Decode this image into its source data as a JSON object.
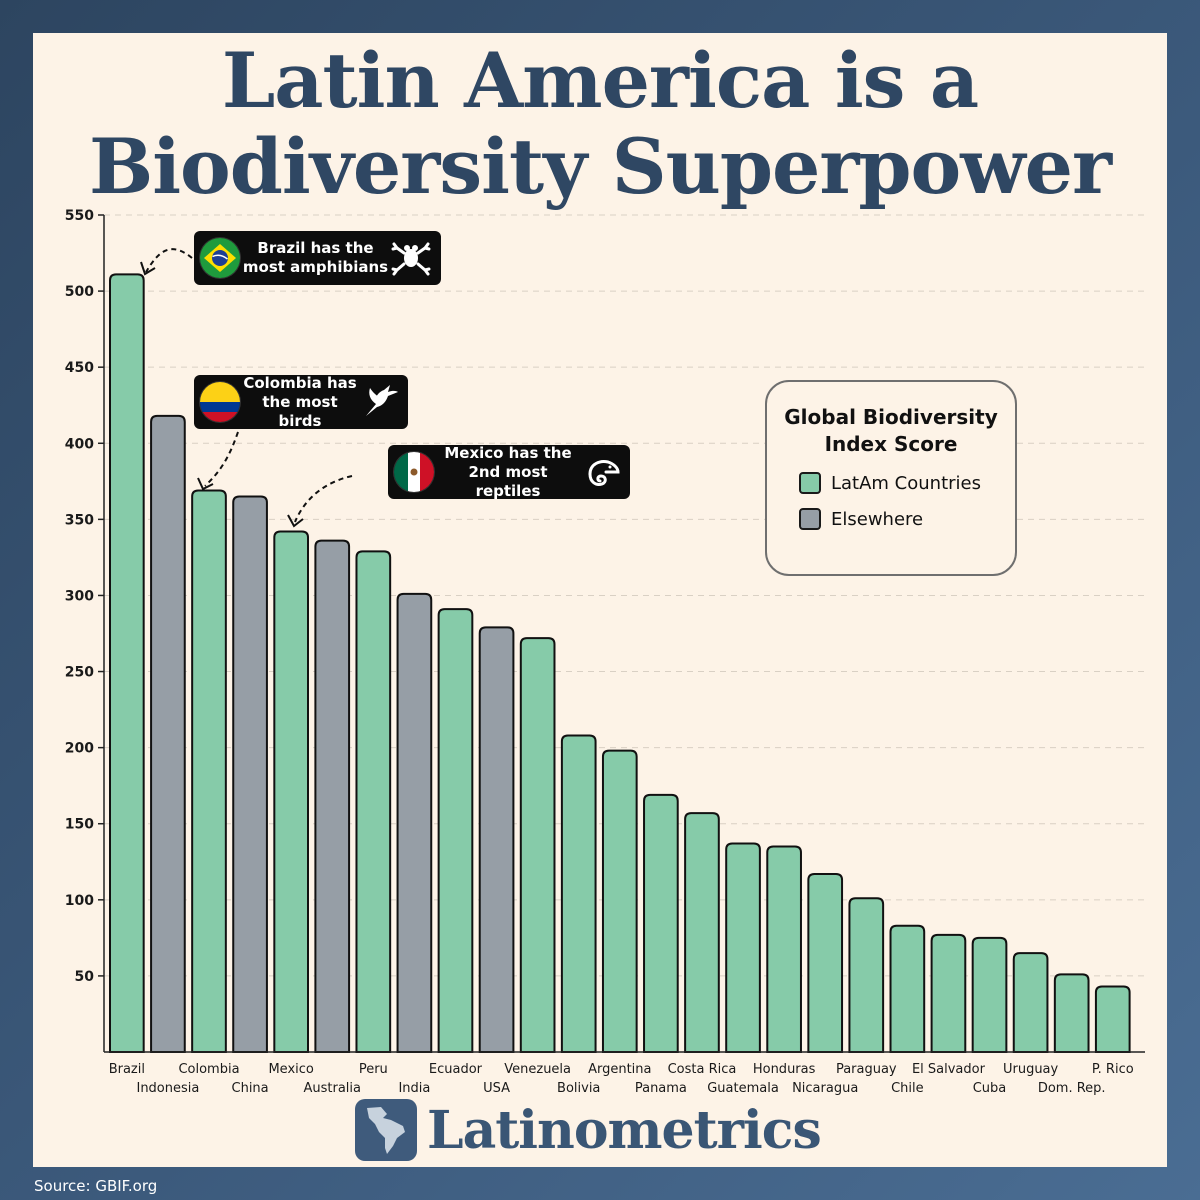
{
  "title": "Latin America is a Biodiversity Superpower",
  "source": "Source: GBIF.org",
  "brand": "Latinometrics",
  "colors": {
    "latam": "#86cba9",
    "elsewhere": "#969ea6",
    "title": "#2f4763",
    "background": "#fdf3e7"
  },
  "annotations": [
    {
      "id": "brazil",
      "text_line1": "Brazil has the",
      "text_line2": "most amphibians",
      "flag": "brazil-flag",
      "icon": "frog-icon"
    },
    {
      "id": "colombia",
      "text_line1": "Colombia has",
      "text_line2": "the most birds",
      "flag": "colombia-flag",
      "icon": "hummingbird-icon"
    },
    {
      "id": "mexico",
      "text_line1": "Mexico has the",
      "text_line2": "2nd most reptiles",
      "flag": "mexico-flag",
      "icon": "chameleon-icon"
    }
  ],
  "legend": {
    "title": "Global Biodiversity Index Score",
    "items": [
      {
        "label": "LatAm Countries",
        "color": "#86cba9"
      },
      {
        "label": "Elsewhere",
        "color": "#969ea6"
      }
    ]
  },
  "chart_data": {
    "type": "bar",
    "title": "",
    "xlabel": "",
    "ylabel": "",
    "ylim": [
      0,
      550
    ],
    "yticks": [
      50,
      100,
      150,
      200,
      250,
      300,
      350,
      400,
      450,
      500,
      550
    ],
    "grid": true,
    "categories": [
      "Brazil",
      "Indonesia",
      "Colombia",
      "China",
      "Mexico",
      "Australia",
      "Peru",
      "India",
      "Ecuador",
      "USA",
      "Venezuela",
      "Bolivia",
      "Argentina",
      "Panama",
      "Costa Rica",
      "Guatemala",
      "Honduras",
      "Nicaragua",
      "Paraguay",
      "Chile",
      "El Salvador",
      "Cuba",
      "Uruguay",
      "Dom. Rep.",
      "P. Rico"
    ],
    "category_labels": [
      "Brazil",
      "Indonesia",
      "Colombia",
      "China",
      "Mexico",
      "Australia",
      "Peru",
      "India",
      "Ecuador",
      "USA",
      "Venezuela",
      "Bolivia",
      "Argentina",
      "Panama",
      "Costa Rica",
      "Guatemala",
      "Honduras",
      "Nicaragua",
      "Paraguay",
      "Chile",
      "El Salvador",
      "Cuba",
      "Uruguay",
      "Dom. Rep.",
      "P. Rico"
    ],
    "values": [
      511,
      418,
      369,
      365,
      342,
      336,
      329,
      301,
      291,
      279,
      272,
      208,
      198,
      169,
      157,
      137,
      135,
      117,
      101,
      83,
      77,
      75,
      65,
      51,
      43
    ],
    "groups": [
      "latam",
      "elsewhere",
      "latam",
      "elsewhere",
      "latam",
      "elsewhere",
      "latam",
      "elsewhere",
      "latam",
      "elsewhere",
      "latam",
      "latam",
      "latam",
      "latam",
      "latam",
      "latam",
      "latam",
      "latam",
      "latam",
      "latam",
      "latam",
      "latam",
      "latam",
      "latam",
      "latam"
    ]
  }
}
